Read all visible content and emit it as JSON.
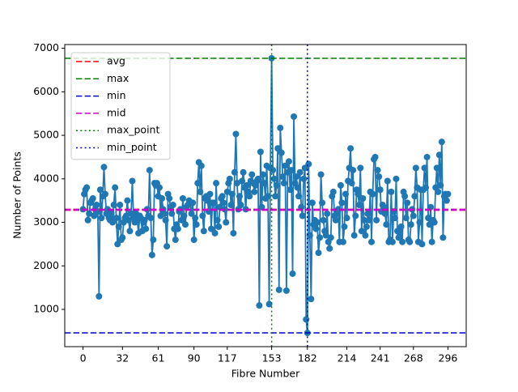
{
  "chart_data": {
    "type": "line",
    "xlabel": "Fibre Number",
    "ylabel": "Number of Points",
    "x": [
      0,
      1,
      2,
      3,
      4,
      5,
      6,
      7,
      8,
      9,
      10,
      11,
      12,
      13,
      14,
      15,
      16,
      17,
      18,
      19,
      20,
      21,
      22,
      23,
      24,
      25,
      26,
      27,
      28,
      29,
      30,
      31,
      32,
      33,
      34,
      35,
      36,
      37,
      38,
      39,
      40,
      41,
      42,
      43,
      44,
      45,
      46,
      47,
      48,
      49,
      50,
      51,
      52,
      53,
      54,
      55,
      56,
      57,
      58,
      59,
      60,
      61,
      62,
      63,
      64,
      65,
      66,
      67,
      68,
      69,
      70,
      71,
      72,
      73,
      74,
      75,
      76,
      77,
      78,
      79,
      80,
      81,
      82,
      83,
      84,
      85,
      86,
      87,
      88,
      89,
      90,
      91,
      92,
      93,
      94,
      95,
      96,
      97,
      98,
      99,
      100,
      101,
      102,
      103,
      104,
      105,
      106,
      107,
      108,
      109,
      110,
      111,
      112,
      113,
      114,
      115,
      116,
      117,
      118,
      119,
      120,
      121,
      122,
      123,
      124,
      125,
      126,
      127,
      128,
      129,
      130,
      131,
      132,
      133,
      134,
      135,
      136,
      137,
      138,
      139,
      140,
      141,
      142,
      143,
      144,
      145,
      146,
      147,
      148,
      149,
      150,
      151,
      152,
      153,
      154,
      155,
      156,
      157,
      158,
      159,
      160,
      161,
      162,
      163,
      164,
      165,
      166,
      167,
      168,
      169,
      170,
      171,
      172,
      173,
      174,
      175,
      176,
      177,
      178,
      179,
      180,
      181,
      182,
      183,
      184,
      185,
      186,
      187,
      188,
      189,
      190,
      191,
      192,
      193,
      194,
      195,
      196,
      197,
      198,
      199,
      200,
      201,
      202,
      203,
      204,
      205,
      206,
      207,
      208,
      209,
      210,
      211,
      212,
      213,
      214,
      215,
      216,
      217,
      218,
      219,
      220,
      221,
      222,
      223,
      224,
      225,
      226,
      227,
      228,
      229,
      230,
      231,
      232,
      233,
      234,
      235,
      236,
      237,
      238,
      239,
      240,
      241,
      242,
      243,
      244,
      245,
      246,
      247,
      248,
      249,
      250,
      251,
      252,
      253,
      254,
      255,
      256,
      257,
      258,
      259,
      260,
      261,
      262,
      263,
      264,
      265,
      266,
      267,
      268,
      269,
      270,
      271,
      272,
      273,
      274,
      275,
      276,
      277,
      278,
      279,
      280,
      281,
      282,
      283,
      284,
      285,
      286,
      287,
      288,
      289,
      290,
      291,
      292,
      293,
      294,
      295,
      296
    ],
    "series": [
      {
        "color": "#1f77b4",
        "values": [
          3300,
          3650,
          3750,
          3800,
          3050,
          3200,
          3450,
          3500,
          3550,
          3150,
          3300,
          3400,
          3250,
          1300,
          3750,
          3100,
          3600,
          4270,
          3650,
          3200,
          3300,
          3100,
          3050,
          3200,
          3000,
          3400,
          3800,
          3100,
          2500,
          2900,
          3400,
          2600,
          2650,
          3000,
          3100,
          3150,
          3500,
          3050,
          2800,
          3200,
          3950,
          3100,
          3000,
          3200,
          3050,
          2750,
          3150,
          3100,
          2800,
          3000,
          3050,
          2850,
          3300,
          3150,
          4200,
          3100,
          2250,
          2600,
          3900,
          3850,
          3900,
          3600,
          3800,
          3150,
          3550,
          3300,
          3200,
          3050,
          2450,
          3650,
          3550,
          3350,
          3200,
          3400,
          2850,
          2600,
          2950,
          2850,
          3250,
          3300,
          3050,
          3550,
          3150,
          2950,
          3350,
          3400,
          3500,
          3450,
          3200,
          3450,
          2600,
          3100,
          2950,
          3900,
          4380,
          3700,
          4300,
          3150,
          2800,
          3550,
          3600,
          3500,
          3250,
          3650,
          2850,
          3450,
          3450,
          2750,
          3900,
          3050,
          2900,
          3350,
          3550,
          3600,
          3450,
          3300,
          3000,
          3700,
          3900,
          4000,
          3400,
          3650,
          2750,
          4150,
          5030,
          3900,
          3300,
          3600,
          3400,
          3950,
          4150,
          3800,
          3300,
          3850,
          3700,
          3600,
          3950,
          4100,
          3900,
          3700,
          3850,
          3950,
          4000,
          1090,
          4620,
          3350,
          4100,
          3900,
          3550,
          4300,
          3600,
          1120,
          4250,
          6770,
          4200,
          4000,
          3600,
          3850,
          4700,
          1450,
          5170,
          4600,
          4050,
          3900,
          4300,
          1430,
          4150,
          4400,
          3750,
          4200,
          1820,
          5430,
          3900,
          4050,
          3800,
          3600,
          4150,
          3350,
          3150,
          4000,
          4250,
          770,
          460,
          4340,
          2700,
          1240,
          3450,
          2950,
          3050,
          2850,
          3000,
          2300,
          2650,
          4100,
          3450,
          3050,
          2800,
          2700,
          3200,
          2550,
          2400,
          2650,
          3600,
          3700,
          3150,
          3050,
          3200,
          3300,
          2550,
          3850,
          3450,
          2550,
          2900,
          3650,
          3100,
          3950,
          4250,
          4700,
          3900,
          4200,
          2700,
          3150,
          3750,
          3650,
          3400,
          4250,
          2800,
          3550,
          3050,
          2700,
          2900,
          3200,
          3050,
          3700,
          2550,
          3650,
          4450,
          4500,
          3050,
          4200,
          4050,
          3750,
          3250,
          3400,
          3350,
          3200,
          2950,
          3950,
          2550,
          2600,
          3700,
          2550,
          3250,
          3100,
          4000,
          2800,
          2650,
          2750,
          2900,
          2550,
          3700,
          3600,
          3100,
          3450,
          2600,
          2550,
          2950,
          3300,
          3150,
          3600,
          4250,
          3800,
          2550,
          3000,
          3750,
          2500,
          3750,
          4250,
          3800,
          4500,
          3100,
          2950,
          3350,
          2550,
          3050,
          3000,
          3800,
          4250,
          3700,
          4550,
          3850,
          4850,
          2650,
          3600,
          3650,
          3500,
          3650
        ]
      }
    ],
    "reference_lines": [
      {
        "name": "avg",
        "value": 3290,
        "orientation": "horizontal",
        "color": "#ff0000",
        "style": "dashed"
      },
      {
        "name": "max",
        "value": 6770,
        "orientation": "horizontal",
        "color": "#008000",
        "style": "dashed"
      },
      {
        "name": "min",
        "value": 460,
        "orientation": "horizontal",
        "color": "#0000cd",
        "style": "dashed"
      },
      {
        "name": "mid",
        "value": 3290,
        "orientation": "horizontal",
        "color": "#cc00cc",
        "style": "dashed"
      },
      {
        "name": "max_point",
        "value": 153,
        "orientation": "vertical",
        "color": "#008000",
        "style": "dotted"
      },
      {
        "name": "min_point",
        "value": 182,
        "orientation": "vertical",
        "color": "#0000cd",
        "style": "dotted"
      }
    ],
    "xlim": [
      -14.8,
      310.8
    ],
    "ylim": [
      144,
      7086
    ],
    "xticks": [
      0,
      32,
      61,
      90,
      117,
      153,
      182,
      214,
      241,
      268,
      296
    ],
    "yticks": [
      1000,
      2000,
      3000,
      4000,
      5000,
      6000,
      7000
    ],
    "legend": "upper left"
  }
}
